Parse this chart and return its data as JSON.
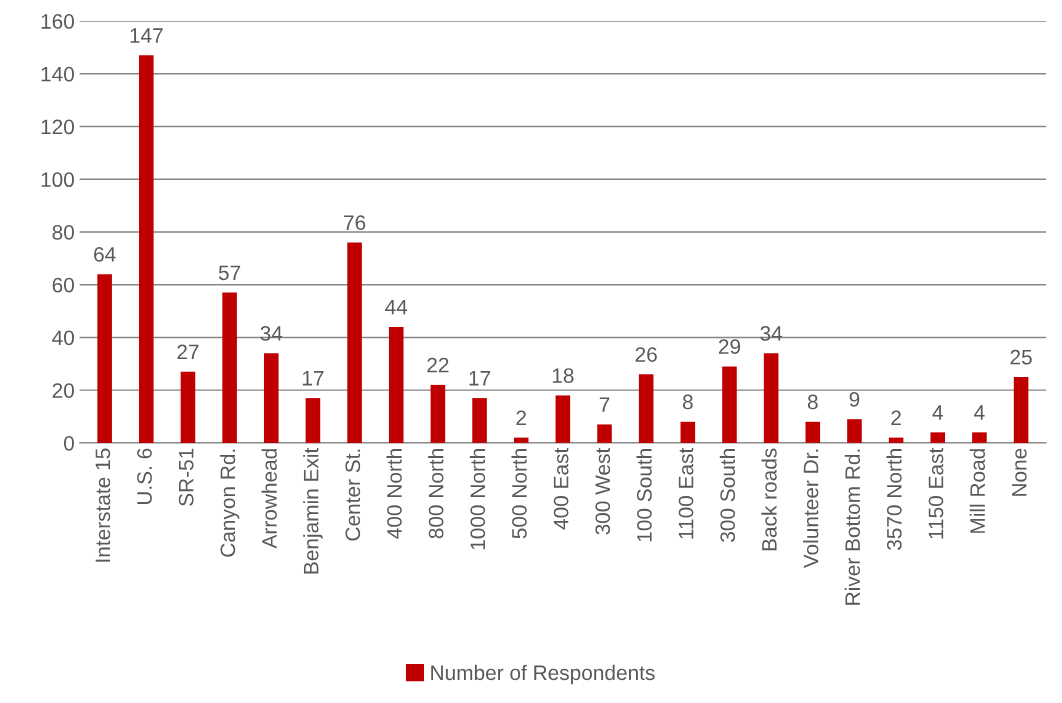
{
  "chart_data": {
    "type": "bar",
    "categories": [
      "Interstate 15",
      "U.S. 6",
      "SR-51",
      "Canyon Rd.",
      "Arrowhead",
      "Benjamin Exit",
      "Center St.",
      "400 North",
      "800 North",
      "1000 North",
      "500 North",
      "400 East",
      "300 West",
      "100 South",
      "1100 East",
      "300 South",
      "Back roads",
      "Volunteer Dr.",
      "River Bottom Rd.",
      "3570 North",
      "1150 East",
      "Mill Road",
      "None"
    ],
    "series": [
      {
        "name": "Number of Respondents",
        "color": "#c00000",
        "values": [
          64,
          147,
          27,
          57,
          34,
          17,
          76,
          44,
          22,
          17,
          2,
          18,
          7,
          26,
          8,
          29,
          34,
          8,
          9,
          2,
          4,
          4,
          25
        ]
      }
    ],
    "ylim": [
      0,
      160
    ],
    "yticks": [
      0,
      20,
      40,
      60,
      80,
      100,
      120,
      140,
      160
    ],
    "grid": "y",
    "legend": "bottom",
    "data_labels": true
  }
}
